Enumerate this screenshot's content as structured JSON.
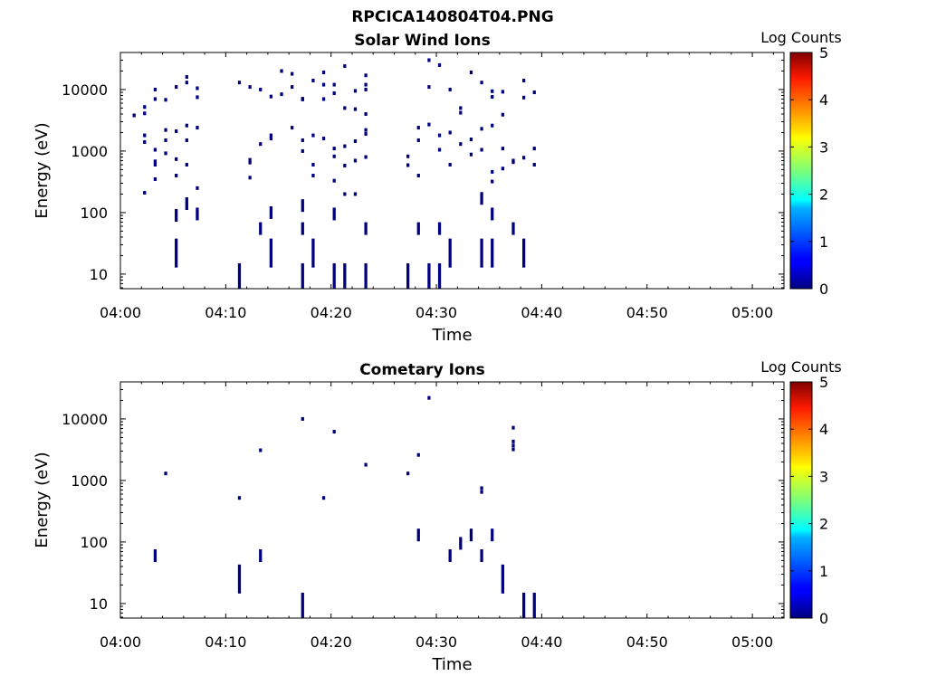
{
  "figure": {
    "title": "RPCICA140804T04.PNG"
  },
  "chart_data": [
    {
      "type": "heatmap",
      "title": "Solar Wind Ions",
      "xlabel": "Time",
      "ylabel": "Energy (eV)",
      "x_scale": "time",
      "y_scale": "log",
      "xlim": [
        "04:00",
        "05:03"
      ],
      "ylim": [
        5.8,
        40000
      ],
      "x_ticks": [
        "04:00",
        "04:10",
        "04:20",
        "04:30",
        "04:40",
        "04:50",
        "05:00"
      ],
      "y_ticks": [
        "10",
        "100",
        "1000",
        "10000"
      ],
      "colorbar": {
        "label": "Log Counts",
        "range": [
          0,
          5
        ],
        "ticks": [
          "0",
          "1",
          "2",
          "3",
          "4",
          "5"
        ],
        "colormap": "jet"
      },
      "points": [
        [
          "04:01",
          3800,
          0
        ],
        [
          "04:01",
          3800,
          0
        ],
        [
          "04:02",
          5200,
          0
        ],
        [
          "04:02",
          1400,
          0
        ],
        [
          "04:02",
          210,
          0
        ],
        [
          "04:02",
          1800,
          0
        ],
        [
          "04:02",
          4100,
          0
        ],
        [
          "04:03",
          680,
          0
        ],
        [
          "04:03",
          600,
          0
        ],
        [
          "04:03",
          350,
          0
        ],
        [
          "04:03",
          1050,
          0
        ],
        [
          "04:03",
          10000,
          0
        ],
        [
          "04:03",
          7000,
          0
        ],
        [
          "04:04",
          6800,
          0
        ],
        [
          "04:04",
          1500,
          0
        ],
        [
          "04:04",
          2200,
          0
        ],
        [
          "04:04",
          920,
          0
        ],
        [
          "04:05",
          400,
          0
        ],
        [
          "04:05",
          740,
          0
        ],
        [
          "04:05",
          2100,
          0
        ],
        [
          "04:05",
          11000,
          0
        ],
        [
          "04:06",
          600,
          0
        ],
        [
          "04:06",
          1500,
          0
        ],
        [
          "04:06",
          2600,
          0
        ],
        [
          "04:06",
          16000,
          0
        ],
        [
          "04:06",
          13000,
          0
        ],
        [
          "04:07",
          10500,
          0
        ],
        [
          "04:07",
          2400,
          0
        ],
        [
          "04:07",
          250,
          0
        ],
        [
          "04:07",
          7500,
          0
        ],
        [
          "04:11",
          13000,
          0
        ],
        [
          "04:12",
          11000,
          0
        ],
        [
          "04:12",
          720,
          0
        ],
        [
          "04:12",
          370,
          0
        ],
        [
          "04:12",
          650,
          0
        ],
        [
          "04:13",
          1300,
          0
        ],
        [
          "04:13",
          10000,
          0
        ],
        [
          "04:14",
          1600,
          0
        ],
        [
          "04:14",
          1800,
          0
        ],
        [
          "04:14",
          7700,
          0
        ],
        [
          "04:15",
          20000,
          0
        ],
        [
          "04:15",
          8400,
          0
        ],
        [
          "04:16",
          2400,
          0
        ],
        [
          "04:16",
          18000,
          0
        ],
        [
          "04:16",
          11000,
          0
        ],
        [
          "04:17",
          7100,
          0
        ],
        [
          "04:17",
          6900,
          0
        ],
        [
          "04:17",
          1500,
          0
        ],
        [
          "04:17",
          1000,
          0
        ],
        [
          "04:18",
          14000,
          0
        ],
        [
          "04:18",
          600,
          0
        ],
        [
          "04:18",
          400,
          0
        ],
        [
          "04:18",
          1800,
          0
        ],
        [
          "04:19",
          12000,
          0
        ],
        [
          "04:19",
          7000,
          0
        ],
        [
          "04:19",
          19000,
          0
        ],
        [
          "04:19",
          1600,
          0
        ],
        [
          "04:20",
          1100,
          0
        ],
        [
          "04:20",
          330,
          0
        ],
        [
          "04:20",
          820,
          0
        ],
        [
          "04:20",
          8700,
          0
        ],
        [
          "04:20",
          12000,
          0
        ],
        [
          "04:21",
          24000,
          0
        ],
        [
          "04:21",
          5000,
          0
        ],
        [
          "04:21",
          1200,
          0
        ],
        [
          "04:21",
          580,
          0
        ],
        [
          "04:21",
          200,
          0
        ],
        [
          "04:22",
          4800,
          0
        ],
        [
          "04:22",
          1450,
          0
        ],
        [
          "04:22",
          200,
          0
        ],
        [
          "04:22",
          700,
          0
        ],
        [
          "04:22",
          9500,
          0
        ],
        [
          "04:23",
          17000,
          0
        ],
        [
          "04:23",
          12000,
          0
        ],
        [
          "04:23",
          10000,
          0
        ],
        [
          "04:23",
          4000,
          0
        ],
        [
          "04:23",
          2200,
          0
        ],
        [
          "04:23",
          1900,
          0
        ],
        [
          "04:23",
          800,
          0
        ],
        [
          "04:27",
          820,
          0
        ],
        [
          "04:27",
          590,
          0
        ],
        [
          "04:28",
          400,
          0
        ],
        [
          "04:28",
          1500,
          0
        ],
        [
          "04:28",
          2400,
          0
        ],
        [
          "04:29",
          11000,
          0
        ],
        [
          "04:29",
          30000,
          0
        ],
        [
          "04:29",
          2700,
          0
        ],
        [
          "04:30",
          1050,
          0
        ],
        [
          "04:30",
          25000,
          0
        ],
        [
          "04:30",
          1800,
          0
        ],
        [
          "04:31",
          600,
          0
        ],
        [
          "04:31",
          10000,
          0
        ],
        [
          "04:31",
          2000,
          0
        ],
        [
          "04:32",
          5000,
          0
        ],
        [
          "04:32",
          4200,
          0
        ],
        [
          "04:32",
          1300,
          0
        ],
        [
          "04:33",
          19000,
          0
        ],
        [
          "04:33",
          1550,
          0
        ],
        [
          "04:33",
          880,
          0
        ],
        [
          "04:34",
          1050,
          0
        ],
        [
          "04:34",
          2300,
          0
        ],
        [
          "04:34",
          13000,
          0
        ],
        [
          "04:35",
          9400,
          0
        ],
        [
          "04:35",
          7600,
          0
        ],
        [
          "04:35",
          2600,
          0
        ],
        [
          "04:35",
          460,
          0
        ],
        [
          "04:35",
          320,
          0
        ],
        [
          "04:36",
          1100,
          0
        ],
        [
          "04:36",
          520,
          0
        ],
        [
          "04:36",
          9200,
          0
        ],
        [
          "04:36",
          3900,
          0
        ],
        [
          "04:37",
          700,
          0
        ],
        [
          "04:37",
          660,
          0
        ],
        [
          "04:38",
          14000,
          0
        ],
        [
          "04:38",
          7400,
          0
        ],
        [
          "04:38",
          780,
          0
        ],
        [
          "04:39",
          1100,
          0
        ],
        [
          "04:39",
          9000,
          0
        ],
        [
          "04:39",
          600,
          0
        ],
        [
          "04:05",
          90,
          0
        ],
        [
          "04:06",
          140,
          0
        ],
        [
          "04:07",
          95,
          0
        ],
        [
          "04:13",
          55,
          0
        ],
        [
          "04:14",
          100,
          0
        ],
        [
          "04:17",
          130,
          0
        ],
        [
          "04:17",
          55,
          0
        ],
        [
          "04:20",
          95,
          0
        ],
        [
          "04:23",
          55,
          0
        ],
        [
          "04:28",
          55,
          0
        ],
        [
          "04:30",
          55,
          0
        ],
        [
          "04:34",
          170,
          0
        ],
        [
          "04:35",
          95,
          0
        ],
        [
          "04:37",
          55,
          0
        ],
        [
          "04:05",
          22,
          0
        ],
        [
          "04:14",
          22,
          0
        ],
        [
          "04:18",
          22,
          0
        ],
        [
          "04:31",
          22,
          0
        ],
        [
          "04:34",
          22,
          0
        ],
        [
          "04:35",
          22,
          0
        ],
        [
          "04:38",
          22,
          0
        ],
        [
          "04:11",
          9,
          0
        ],
        [
          "04:17",
          9,
          0
        ],
        [
          "04:20",
          9,
          0
        ],
        [
          "04:21",
          9,
          0
        ],
        [
          "04:23",
          9,
          0
        ],
        [
          "04:27",
          9,
          0
        ],
        [
          "04:29",
          9,
          0
        ],
        [
          "04:30",
          9,
          0
        ]
      ]
    },
    {
      "type": "heatmap",
      "title": "Cometary Ions",
      "xlabel": "Time",
      "ylabel": "Energy (eV)",
      "x_scale": "time",
      "y_scale": "log",
      "xlim": [
        "04:00",
        "05:03"
      ],
      "ylim": [
        5.8,
        40000
      ],
      "x_ticks": [
        "04:00",
        "04:10",
        "04:20",
        "04:30",
        "04:40",
        "04:50",
        "05:00"
      ],
      "y_ticks": [
        "10",
        "100",
        "1000",
        "10000"
      ],
      "colorbar": {
        "label": "Log Counts",
        "range": [
          0,
          5
        ],
        "ticks": [
          "0",
          "1",
          "2",
          "3",
          "4",
          "5"
        ],
        "colormap": "jet"
      },
      "points": [
        [
          "04:04",
          1300,
          0
        ],
        [
          "04:11",
          520,
          0
        ],
        [
          "04:13",
          3100,
          0
        ],
        [
          "04:17",
          10000,
          0
        ],
        [
          "04:19",
          520,
          0
        ],
        [
          "04:20",
          6200,
          0
        ],
        [
          "04:23",
          1800,
          0
        ],
        [
          "04:27",
          1300,
          0
        ],
        [
          "04:28",
          2600,
          0
        ],
        [
          "04:29",
          22000,
          0
        ],
        [
          "04:34",
          750,
          0
        ],
        [
          "04:34",
          650,
          0
        ],
        [
          "04:37",
          7200,
          0
        ],
        [
          "04:37",
          4300,
          0
        ],
        [
          "04:37",
          3700,
          0
        ],
        [
          "04:37",
          3200,
          0
        ],
        [
          "04:03",
          60,
          0
        ],
        [
          "04:13",
          60,
          0
        ],
        [
          "04:28",
          130,
          0
        ],
        [
          "04:31",
          60,
          0
        ],
        [
          "04:32",
          95,
          0
        ],
        [
          "04:33",
          130,
          0
        ],
        [
          "04:34",
          60,
          0
        ],
        [
          "04:35",
          130,
          0
        ],
        [
          "04:11",
          25,
          0
        ],
        [
          "04:36",
          25,
          0
        ],
        [
          "04:17",
          9,
          0
        ],
        [
          "04:38",
          9,
          0
        ],
        [
          "04:39",
          9,
          0
        ]
      ]
    }
  ]
}
